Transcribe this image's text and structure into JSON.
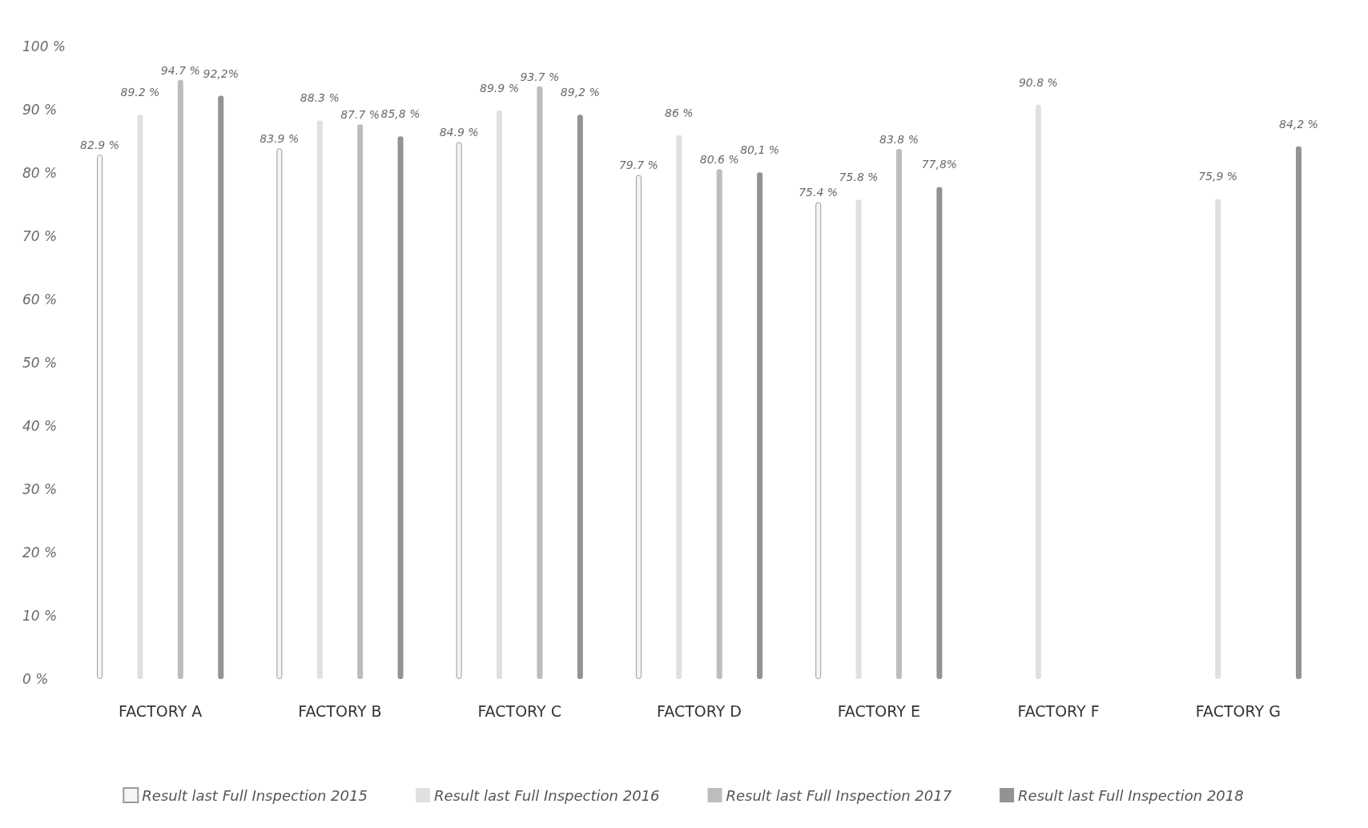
{
  "chart_data": {
    "type": "bar",
    "categories": [
      "FACTORY A",
      "FACTORY B",
      "FACTORY C",
      "FACTORY D",
      "FACTORY E",
      "FACTORY F",
      "FACTORY G"
    ],
    "series": [
      {
        "name": "Result last Full Inspection 2015",
        "color": "#f5f5f5",
        "values": [
          82.9,
          83.9,
          84.9,
          79.7,
          75.4,
          null,
          null
        ],
        "value_labels": [
          "82.9 %",
          "83.9 %",
          "84.9 %",
          "79.7 %",
          "75.4 %",
          null,
          null
        ]
      },
      {
        "name": "Result last Full Inspection 2016",
        "color": "#e0e0e0",
        "values": [
          89.2,
          88.3,
          89.9,
          86,
          75.8,
          90.8,
          75.9
        ],
        "value_labels": [
          "89.2 %",
          "88.3 %",
          "89.9 %",
          "86 %",
          "75.8 %",
          "90.8 %",
          "75,9 %"
        ]
      },
      {
        "name": "Result last Full Inspection 2017",
        "color": "#bdbdbd",
        "values": [
          94.7,
          87.7,
          93.7,
          80.6,
          83.8,
          null,
          null
        ],
        "value_labels": [
          "94.7 %",
          "87.7 %",
          "93.7 %",
          "80.6 %",
          "83.8 %",
          null,
          null
        ]
      },
      {
        "name": "Result last Full Inspection 2018",
        "color": "#939393",
        "values": [
          92.2,
          85.8,
          89.2,
          80.1,
          77.8,
          null,
          84.2
        ],
        "value_labels": [
          "92,2%",
          "85,8 %",
          "89,2 %",
          "80,1 %",
          "77,8%",
          null,
          "84,2 %"
        ]
      }
    ],
    "ylim": [
      0,
      100
    ],
    "yticks": [
      {
        "value": 0,
        "label": "0 %"
      },
      {
        "value": 10,
        "label": "10 %"
      },
      {
        "value": 20,
        "label": "20 %"
      },
      {
        "value": 30,
        "label": "30 %"
      },
      {
        "value": 40,
        "label": "40 %"
      },
      {
        "value": 50,
        "label": "50 %"
      },
      {
        "value": 60,
        "label": "60 %"
      },
      {
        "value": 70,
        "label": "70 %"
      },
      {
        "value": 80,
        "label": "80 %"
      },
      {
        "value": 90,
        "label": "90 %"
      },
      {
        "value": 100,
        "label": "100 %"
      }
    ],
    "grid": false,
    "legend": "bottom"
  }
}
